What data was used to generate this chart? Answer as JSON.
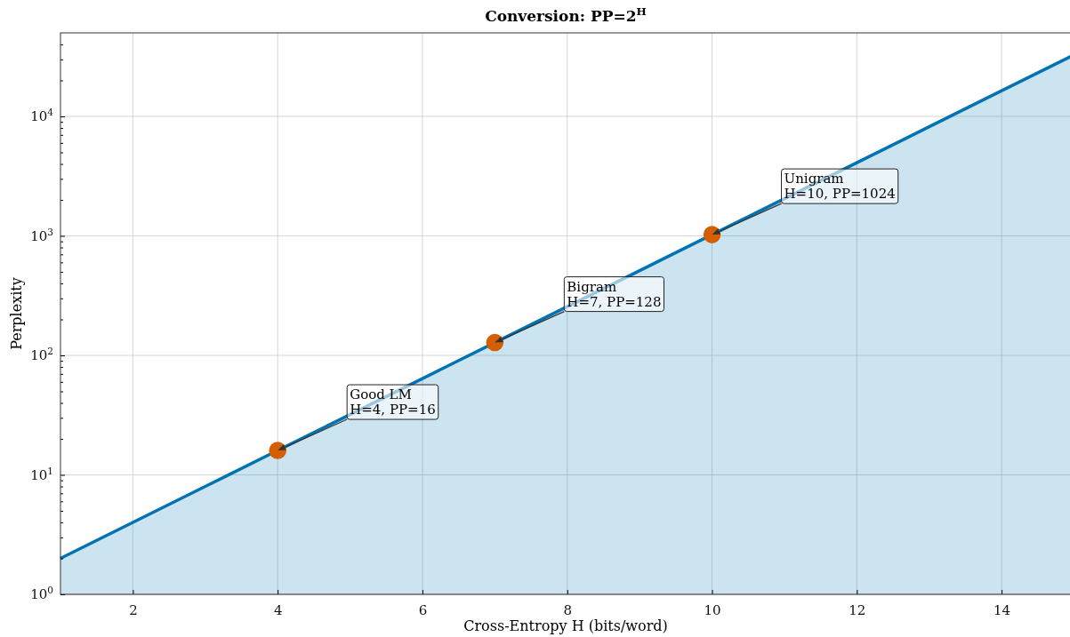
{
  "chart_data": {
    "type": "area",
    "title": "Conversion: PP=2$^{H}$",
    "xlabel": "Cross-Entropy H (bits/word)",
    "ylabel": "Perplexity",
    "log": "y",
    "grid": true,
    "xlim": [
      1,
      15
    ],
    "ylim": [
      1,
      50000
    ],
    "xticks": [
      2,
      4,
      6,
      8,
      10,
      12,
      14
    ],
    "yticks": [
      {
        "value": 1,
        "label": "10$^{0}$"
      },
      {
        "value": 2,
        "label": null
      },
      {
        "value": 3,
        "label": null
      },
      {
        "value": 4,
        "label": null
      },
      {
        "value": 5,
        "label": null
      },
      {
        "value": 6,
        "label": null
      },
      {
        "value": 7,
        "label": null
      },
      {
        "value": 8,
        "label": null
      },
      {
        "value": 9,
        "label": null
      },
      {
        "value": 10,
        "label": "10$^{1}$"
      },
      {
        "value": 20,
        "label": null
      },
      {
        "value": 30,
        "label": null
      },
      {
        "value": 40,
        "label": null
      },
      {
        "value": 50,
        "label": null
      },
      {
        "value": 60,
        "label": null
      },
      {
        "value": 70,
        "label": null
      },
      {
        "value": 80,
        "label": null
      },
      {
        "value": 90,
        "label": null
      },
      {
        "value": 100,
        "label": "10$^{2}$"
      },
      {
        "value": 200,
        "label": null
      },
      {
        "value": 300,
        "label": null
      },
      {
        "value": 400,
        "label": null
      },
      {
        "value": 500,
        "label": null
      },
      {
        "value": 600,
        "label": null
      },
      {
        "value": 700,
        "label": null
      },
      {
        "value": 800,
        "label": null
      },
      {
        "value": 900,
        "label": null
      },
      {
        "value": 1000,
        "label": "10$^{3}$"
      },
      {
        "value": 2000,
        "label": null
      },
      {
        "value": 3000,
        "label": null
      },
      {
        "value": 4000,
        "label": null
      },
      {
        "value": 5000,
        "label": null
      },
      {
        "value": 6000,
        "label": null
      },
      {
        "value": 7000,
        "label": null
      },
      {
        "value": 8000,
        "label": null
      },
      {
        "value": 9000,
        "label": null
      },
      {
        "value": 10000,
        "label": "10$^{4}$"
      },
      {
        "value": 20000,
        "label": null
      },
      {
        "value": 30000,
        "label": null
      },
      {
        "value": 40000,
        "label": null
      }
    ],
    "series": [
      {
        "color": "#0173b2",
        "x": [
          1,
          2,
          3,
          4,
          5,
          6,
          7,
          8,
          9,
          10,
          11,
          12,
          13,
          14,
          15
        ],
        "values": [
          2,
          4,
          8,
          16,
          32,
          64,
          128,
          256,
          512,
          1024,
          2048,
          4096,
          8192,
          16384,
          32768
        ]
      },
      {
        "type": "scatter",
        "color": "#d55e00",
        "marker": "circle",
        "x": [
          4,
          7,
          10
        ],
        "values": [
          16,
          128,
          1024
        ]
      }
    ],
    "annotations": [
      "Good LM\nH=4, PP=16",
      "Bigram\nH=7, PP=128",
      "Unigram\nH=10, PP=1024"
    ]
  }
}
